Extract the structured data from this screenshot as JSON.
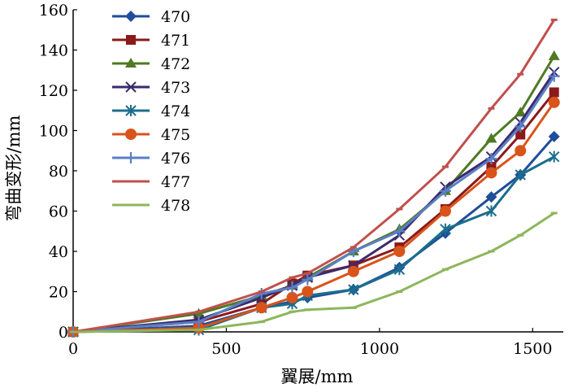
{
  "chart_data": {
    "type": "line",
    "title": "",
    "xlabel": "翼展/mm",
    "ylabel": "弯曲变形/mm",
    "xlim": [
      0,
      1600
    ],
    "ylim": [
      0,
      160
    ],
    "xticks": [
      0,
      500,
      1000,
      1500
    ],
    "yticks": [
      0,
      20,
      40,
      60,
      80,
      100,
      120,
      140,
      160
    ],
    "legend_position": "top-left",
    "series": [
      {
        "name": "470",
        "color": "#1f4e9a",
        "marker": "diamond",
        "x": [
          0,
          410,
          615,
          715,
          765,
          915,
          1065,
          1215,
          1365,
          1460,
          1570
        ],
        "y": [
          0,
          3,
          12,
          15,
          17,
          21,
          32,
          49,
          67,
          78,
          97
        ]
      },
      {
        "name": "471",
        "color": "#8b1a1a",
        "marker": "square",
        "x": [
          0,
          410,
          615,
          715,
          765,
          915,
          1065,
          1215,
          1365,
          1460,
          1570
        ],
        "y": [
          0,
          5,
          14,
          24,
          28,
          33,
          42,
          61,
          82,
          98,
          119
        ]
      },
      {
        "name": "472",
        "color": "#4e7a23",
        "marker": "triangle",
        "x": [
          0,
          410,
          615,
          715,
          765,
          915,
          1065,
          1215,
          1365,
          1460,
          1570
        ],
        "y": [
          0,
          9,
          18,
          23,
          27,
          40,
          51,
          70,
          96,
          109,
          137
        ]
      },
      {
        "name": "473",
        "color": "#3b2a6e",
        "marker": "x",
        "x": [
          0,
          410,
          615,
          715,
          765,
          915,
          1065,
          1215,
          1365,
          1460,
          1570
        ],
        "y": [
          0,
          6,
          17,
          23,
          27,
          33,
          48,
          72,
          87,
          104,
          129
        ]
      },
      {
        "name": "474",
        "color": "#1b6e8c",
        "marker": "asterisk",
        "x": [
          0,
          410,
          615,
          715,
          765,
          915,
          1065,
          1215,
          1365,
          1460,
          1570
        ],
        "y": [
          0,
          1,
          12,
          14,
          18,
          21,
          31,
          51,
          60,
          78,
          87
        ]
      },
      {
        "name": "475",
        "color": "#d9541a",
        "marker": "circle",
        "x": [
          0,
          410,
          615,
          715,
          765,
          915,
          1065,
          1215,
          1365,
          1460,
          1570
        ],
        "y": [
          0,
          2,
          12,
          17,
          20,
          30,
          40,
          60,
          79,
          90,
          114
        ]
      },
      {
        "name": "476",
        "color": "#5b7fc4",
        "marker": "plus",
        "x": [
          0,
          410,
          615,
          715,
          765,
          915,
          1065,
          1215,
          1365,
          1460,
          1570
        ],
        "y": [
          0,
          5,
          19,
          22,
          26,
          40,
          50,
          70,
          86,
          102,
          127
        ]
      },
      {
        "name": "477",
        "color": "#c0504d",
        "marker": "dash",
        "x": [
          0,
          410,
          615,
          715,
          765,
          915,
          1065,
          1215,
          1365,
          1460,
          1570
        ],
        "y": [
          0,
          10,
          20,
          27,
          29,
          42,
          61,
          82,
          111,
          128,
          155
        ]
      },
      {
        "name": "478",
        "color": "#8db65a",
        "marker": "dash",
        "x": [
          0,
          410,
          615,
          715,
          765,
          915,
          1065,
          1215,
          1365,
          1460,
          1570
        ],
        "y": [
          0,
          1,
          5,
          10,
          11,
          12,
          20,
          31,
          40,
          48,
          59
        ]
      }
    ]
  }
}
